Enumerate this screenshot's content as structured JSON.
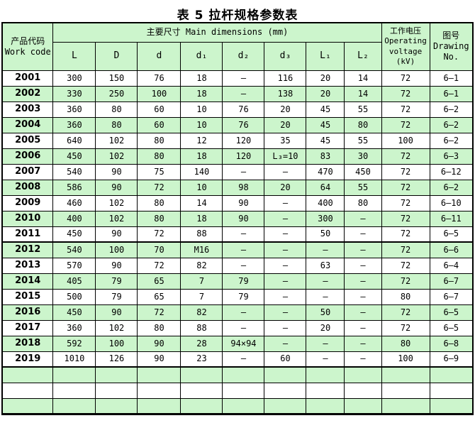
{
  "title": "表 5  拉杆规格参数表",
  "colors": {
    "row_green": "#ccf5cc",
    "row_white": "#ffffff",
    "border": "#000000"
  },
  "table": {
    "header": {
      "work_code": "产品代码\nWork code",
      "main_dimensions": "主要尺寸  Main dimensions   (mm)",
      "operating_voltage": "工作电压\nOperating\nvoltage\n(kV)",
      "drawing_no": "图号\nDrawing\nNo."
    },
    "sub_headers": [
      "L",
      "D",
      "d",
      "d₁",
      "d₂",
      "d₃",
      "L₁",
      "L₂"
    ],
    "rows": [
      [
        "2001",
        "300",
        "150",
        "76",
        "18",
        "—",
        "116",
        "20",
        "14",
        "72",
        "6—1"
      ],
      [
        "2002",
        "330",
        "250",
        "100",
        "18",
        "—",
        "138",
        "20",
        "14",
        "72",
        "6—1"
      ],
      [
        "2003",
        "360",
        "80",
        "60",
        "10",
        "76",
        "20",
        "45",
        "55",
        "72",
        "6—2"
      ],
      [
        "2004",
        "360",
        "80",
        "60",
        "10",
        "76",
        "20",
        "45",
        "80",
        "72",
        "6—2"
      ],
      [
        "2005",
        "640",
        "102",
        "80",
        "12",
        "120",
        "35",
        "45",
        "55",
        "100",
        "6—2"
      ],
      [
        "2006",
        "450",
        "102",
        "80",
        "18",
        "120",
        "L₃=10",
        "83",
        "30",
        "72",
        "6—3"
      ],
      [
        "2007",
        "540",
        "90",
        "75",
        "140",
        "—",
        "—",
        "470",
        "450",
        "72",
        "6—12"
      ],
      [
        "2008",
        "586",
        "90",
        "72",
        "10",
        "98",
        "20",
        "64",
        "55",
        "72",
        "6—2"
      ],
      [
        "2009",
        "460",
        "102",
        "80",
        "14",
        "90",
        "—",
        "400",
        "80",
        "72",
        "6—10"
      ],
      [
        "2010",
        "400",
        "102",
        "80",
        "18",
        "90",
        "—",
        "300",
        "—",
        "72",
        "6—11"
      ],
      [
        "2011",
        "450",
        "90",
        "72",
        "88",
        "—",
        "—",
        "50",
        "—",
        "72",
        "6—5"
      ],
      [
        "2012",
        "540",
        "100",
        "70",
        "M16",
        "—",
        "—",
        "—",
        "—",
        "72",
        "6—6"
      ],
      [
        "2013",
        "570",
        "90",
        "72",
        "82",
        "—",
        "—",
        "63",
        "—",
        "72",
        "6—4"
      ],
      [
        "2014",
        "405",
        "79",
        "65",
        "7",
        "79",
        "—",
        "—",
        "—",
        "72",
        "6—7"
      ],
      [
        "2015",
        "500",
        "79",
        "65",
        "7",
        "79",
        "—",
        "—",
        "—",
        "80",
        "6—7"
      ],
      [
        "2016",
        "450",
        "90",
        "72",
        "82",
        "—",
        "—",
        "50",
        "—",
        "72",
        "6—5"
      ],
      [
        "2017",
        "360",
        "102",
        "80",
        "88",
        "—",
        "—",
        "20",
        "—",
        "72",
        "6—5"
      ],
      [
        "2018",
        "592",
        "100",
        "90",
        "28",
        "94×94",
        "—",
        "—",
        "—",
        "80",
        "6—8"
      ],
      [
        "2019",
        "1010",
        "126",
        "90",
        "23",
        "—",
        "60",
        "—",
        "—",
        "100",
        "6—9"
      ]
    ],
    "empty_row_count": 3,
    "section_break_after": [
      "2011",
      "2019"
    ]
  }
}
